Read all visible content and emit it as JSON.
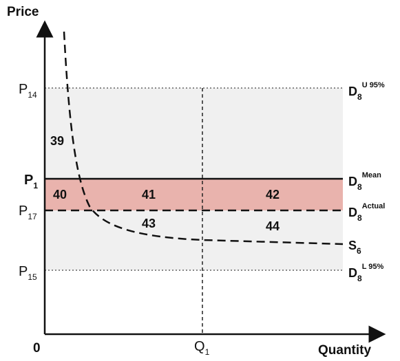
{
  "axes": {
    "y_title": "Price",
    "x_title": "Quantity",
    "origin": "0",
    "x_tick": {
      "main": "Q",
      "sub": "1"
    }
  },
  "price_levels": [
    {
      "main": "P",
      "sub": "14",
      "line_label": {
        "main": "D",
        "sub": "8",
        "sup": "U 95%"
      }
    },
    {
      "main": "P",
      "sub": "1",
      "line_label": {
        "main": "D",
        "sub": "8",
        "sup": "Mean"
      }
    },
    {
      "main": "P",
      "sub": "17",
      "line_label": {
        "main": "D",
        "sub": "8",
        "sup": "Actual"
      }
    },
    {
      "main": "P",
      "sub": "15",
      "line_label": {
        "main": "D",
        "sub": "8",
        "sup": "L 95%"
      }
    }
  ],
  "supply_label": {
    "main": "S",
    "sub": "6"
  },
  "regions": [
    "39",
    "40",
    "41",
    "42",
    "43",
    "44"
  ],
  "colors": {
    "band_fill": "#f0f0f0",
    "highlight_fill": "#e9b3ad",
    "axis": "#111111"
  }
}
